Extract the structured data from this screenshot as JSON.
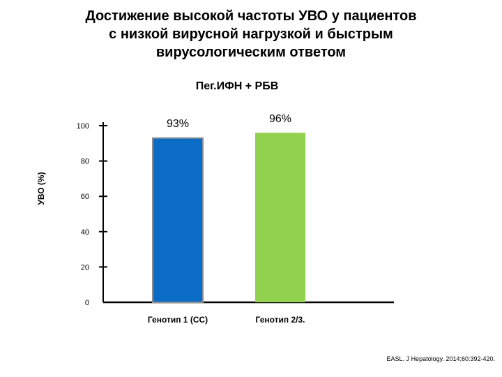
{
  "title_lines": [
    "Достижение высокой частоты УВО у пациентов",
    "с низкой вирусной нагрузкой и быстрым",
    "вирусологическим ответом"
  ],
  "citation": "EASL. J Hepatology. 2014;60:392-420.",
  "chart_data": {
    "type": "bar",
    "title": "Достижение высокой частоты УВО у пациентов с низкой вирусной нагрузкой и быстрым вирусологическим ответом",
    "subtitle": "Пег.ИФН + РБВ",
    "ylabel": "УВО (%)",
    "xlabel": "",
    "categories": [
      "Генотип 1 (СС)",
      "Генотип 2/3."
    ],
    "values": [
      93,
      96
    ],
    "data_labels": [
      "93%",
      "96%"
    ],
    "colors": [
      "#0a6cc4",
      "#92d050"
    ],
    "ylim": [
      0,
      100
    ],
    "yticks": [
      0,
      20,
      40,
      60,
      80,
      100
    ],
    "ytick_labels": [
      "0",
      "20",
      "40",
      "60",
      "80",
      "100"
    ],
    "grid": false,
    "legend": "none"
  }
}
